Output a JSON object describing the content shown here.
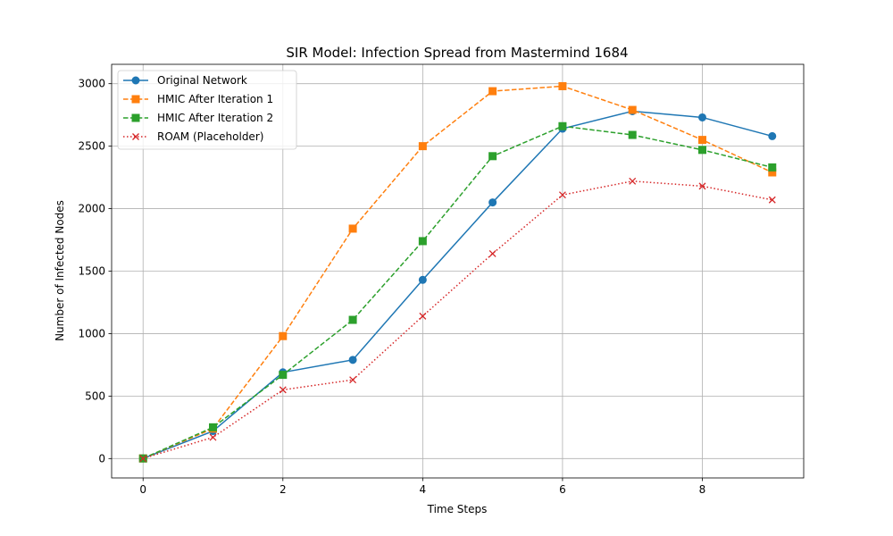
{
  "chart_data": {
    "type": "line",
    "title": "SIR Model: Infection Spread from Mastermind 1684",
    "xlabel": "Time Steps",
    "ylabel": "Number of Infected Nodes",
    "x": [
      0,
      1,
      2,
      3,
      4,
      5,
      6,
      7,
      8,
      9
    ],
    "xlim": [
      -0.45,
      9.45
    ],
    "ylim": [
      -155,
      3155
    ],
    "xticks": [
      0,
      2,
      4,
      6,
      8
    ],
    "yticks": [
      0,
      500,
      1000,
      1500,
      2000,
      2500,
      3000
    ],
    "xtick_labels": [
      "0",
      "2",
      "4",
      "6",
      "8"
    ],
    "ytick_labels": [
      "0",
      "500",
      "1000",
      "1500",
      "2000",
      "2500",
      "3000"
    ],
    "grid": true,
    "legend_position": "top-left",
    "series": [
      {
        "name": "Original Network",
        "color": "#1f77b4",
        "line_style": "solid",
        "marker": "circle",
        "values": [
          1,
          220,
          690,
          790,
          1430,
          2050,
          2640,
          2780,
          2730,
          2580
        ]
      },
      {
        "name": "HMIC After Iteration 1",
        "color": "#ff7f0e",
        "line_style": "dashed",
        "marker": "square",
        "values": [
          1,
          240,
          980,
          1840,
          2500,
          2940,
          2980,
          2790,
          2550,
          2290
        ]
      },
      {
        "name": "HMIC After Iteration 2",
        "color": "#2ca02c",
        "line_style": "dashed",
        "marker": "square",
        "values": [
          1,
          250,
          670,
          1110,
          1740,
          2420,
          2660,
          2590,
          2470,
          2330
        ]
      },
      {
        "name": "ROAM (Placeholder)",
        "color": "#d62728",
        "line_style": "dotted",
        "marker": "x",
        "values": [
          1,
          170,
          550,
          630,
          1140,
          1640,
          2110,
          2220,
          2180,
          2070
        ]
      }
    ]
  }
}
